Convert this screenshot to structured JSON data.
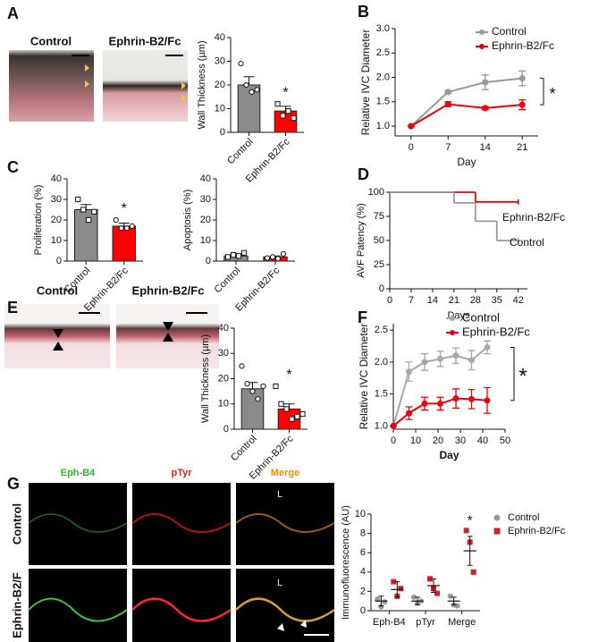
{
  "panel_labels": [
    "A",
    "B",
    "C",
    "D",
    "E",
    "F",
    "G"
  ],
  "image_labels": {
    "a": [
      "Control",
      "Ephrin-B2/Fc"
    ],
    "e": [
      "Control",
      "Ephrin-B2/Fc"
    ],
    "g_columns": [
      "Eph-B4",
      "pTyr",
      "Merge"
    ],
    "g_rows": [
      "Control",
      "Ephrin-B2/F"
    ],
    "g_lumen": [
      "L",
      "L"
    ]
  },
  "chart_data": [
    {
      "type": "bar",
      "ylabel": "Wall Thickness (µm)",
      "categories": [
        "Control",
        "Ephrin-B2/Fc"
      ],
      "values": [
        20,
        9
      ],
      "errors": [
        3.5,
        2
      ],
      "points": [
        [
          29,
          20,
          17,
          18
        ],
        [
          12,
          7,
          9,
          6
        ]
      ],
      "colors": [
        "#8a8a8a",
        "#ff0000"
      ],
      "markers": [
        "circle",
        "square"
      ],
      "ylim": [
        0,
        40
      ],
      "yticks": [
        0,
        10,
        20,
        30,
        40
      ],
      "annotation": "*"
    },
    {
      "type": "line",
      "xlabel": "Day",
      "ylabel": "Relative IVC Diameter",
      "x": [
        0,
        7,
        14,
        21
      ],
      "xlim": [
        -3,
        24
      ],
      "xticks": [
        0,
        7,
        14,
        21
      ],
      "ylim": [
        0.8,
        3.0
      ],
      "yticks": [
        {
          "value": 1,
          "label": "1.0"
        },
        1.5,
        {
          "value": 2,
          "label": "2.0"
        },
        2.5,
        {
          "value": 3,
          "label": "3.0"
        }
      ],
      "series": [
        {
          "name": "Control",
          "color": "#999999",
          "values": [
            1,
            1.7,
            1.9,
            1.98
          ],
          "errors": [
            0,
            0.03,
            0.15,
            0.15
          ]
        },
        {
          "name": "Ephrin-B2/Fc",
          "color": "#e8000b",
          "values": [
            1,
            1.45,
            1.37,
            1.44
          ],
          "errors": [
            0,
            0.05,
            0.03,
            0.1
          ]
        }
      ],
      "legend": "top-right",
      "annotation": "*"
    },
    {
      "type": "bar",
      "ylabel": "Proliferation (%)",
      "categories": [
        "Control",
        "Ephrin-B2/Fc"
      ],
      "values": [
        25,
        17
      ],
      "errors": [
        2.5,
        1.5
      ],
      "points": [
        [
          30,
          25,
          20,
          24
        ],
        [
          20,
          16,
          16,
          17
        ]
      ],
      "colors": [
        "#8a8a8a",
        "#ff0000"
      ],
      "markers": [
        "square",
        "circle"
      ],
      "ylim": [
        0,
        40
      ],
      "yticks": [
        0,
        10,
        20,
        30,
        40
      ],
      "annotation": "*"
    },
    {
      "type": "bar",
      "ylabel": "Apoptosis (%)",
      "categories": [
        "Control",
        "Ephrin-B2/Fc"
      ],
      "values": [
        2.5,
        2
      ],
      "errors": [
        0.6,
        0.5
      ],
      "points": [
        [
          2,
          3,
          2.5,
          4
        ],
        [
          1.5,
          2,
          1.2,
          3.5
        ]
      ],
      "colors": [
        "#8a8a8a",
        "#ff0000"
      ],
      "markers": [
        "square",
        "circle"
      ],
      "ylim": [
        0,
        40
      ],
      "yticks": [
        0,
        10,
        20,
        30,
        40
      ]
    },
    {
      "type": "step",
      "xlabel": "Days",
      "ylabel": "AVF Patency (%)",
      "xlim": [
        0,
        45
      ],
      "xticks": [
        0,
        7,
        14,
        21,
        28,
        35,
        42
      ],
      "ylim": [
        0,
        100
      ],
      "yticks": [
        0,
        25,
        50,
        75,
        100
      ],
      "series": [
        {
          "name": "Ephrin-B2/Fc",
          "color": "#e8000b",
          "x": [
            0,
            28,
            42
          ],
          "values": [
            100,
            90,
            90
          ]
        },
        {
          "name": "Control",
          "color": "#999999",
          "x": [
            0,
            21,
            28,
            35,
            42
          ],
          "values": [
            100,
            89,
            70,
            50,
            50
          ]
        }
      ]
    },
    {
      "type": "bar",
      "ylabel": "Wall Thickness (µm)",
      "categories": [
        "Control",
        "Ephrin-B2/Fc"
      ],
      "values": [
        16,
        8
      ],
      "errors": [
        2.5,
        2
      ],
      "points": [
        [
          25,
          18,
          15,
          12,
          17
        ],
        [
          17,
          10,
          8,
          4,
          5,
          6
        ]
      ],
      "colors": [
        "#8a8a8a",
        "#ff0000"
      ],
      "markers": [
        "circle",
        "square"
      ],
      "ylim": [
        0,
        40
      ],
      "yticks": [
        0,
        10,
        20,
        30,
        40
      ],
      "annotation": "*"
    },
    {
      "type": "line",
      "xlabel": "Day",
      "ylabel": "Relative IVC Diameter",
      "x": [
        0,
        7,
        14,
        21,
        28,
        35,
        42
      ],
      "xlim": [
        0,
        50
      ],
      "xticks": [
        0,
        10,
        20,
        30,
        40,
        50
      ],
      "ylim": [
        0.95,
        2.6
      ],
      "yticks": [
        {
          "value": 1,
          "label": "1.0"
        },
        1.5,
        {
          "value": 2,
          "label": "2.0"
        },
        2.5
      ],
      "series": [
        {
          "name": "Control",
          "color": "#a8a8a8",
          "values": [
            1,
            1.85,
            2.0,
            2.05,
            2.1,
            2.03,
            2.23
          ],
          "errors": [
            0,
            0.15,
            0.13,
            0.12,
            0.12,
            0.15,
            0.1
          ]
        },
        {
          "name": "Ephrin-B2/Fc",
          "color": "#e8000b",
          "values": [
            1,
            1.2,
            1.35,
            1.35,
            1.43,
            1.42,
            1.4
          ],
          "errors": [
            0,
            0.1,
            0.1,
            0.1,
            0.15,
            0.15,
            0.2
          ]
        }
      ],
      "legend": "top-right",
      "annotation": "*"
    },
    {
      "type": "dot",
      "ylabel": "Immunofluorescence (AU)",
      "categories": [
        "Eph-B4",
        "pTyr",
        "Merge"
      ],
      "ylim": [
        0,
        10
      ],
      "yticks": [
        0,
        2,
        4,
        6,
        8,
        10
      ],
      "series": [
        {
          "name": "Control",
          "color": "#999999",
          "marker": "circle",
          "values": [
            1.0,
            1.0,
            1.0
          ],
          "errors": [
            0.5,
            0.4,
            0.4
          ],
          "points": [
            [
              1.2,
              0.4,
              0.9
            ],
            [
              1.4,
              0.8,
              1.0
            ],
            [
              1.5,
              0.6,
              0.5
            ]
          ]
        },
        {
          "name": "Ephrin-B2/Fc",
          "color": "#d0202a",
          "marker": "square",
          "values": [
            2.2,
            2.6,
            6.2
          ],
          "errors": [
            0.8,
            0.7,
            1.5
          ],
          "points": [
            [
              3.0,
              1.5,
              2.3
            ],
            [
              3.3,
              2.3,
              1.8
            ],
            [
              8.3,
              7.1,
              4.0
            ]
          ]
        }
      ],
      "legend": "top-right",
      "annotation": "*"
    }
  ]
}
